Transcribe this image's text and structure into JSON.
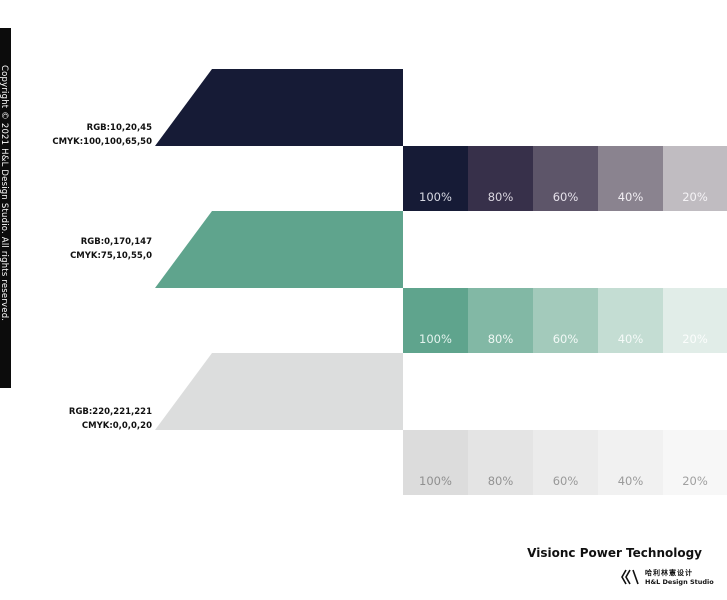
{
  "copyright": "Copyright © 2021 H&L Design Studio. All rights reserved.",
  "colors": [
    {
      "hex": "#161b36",
      "rgb_label": "RGB:10,20,45",
      "cmyk_label": "CMYK:100,100,65,50",
      "tints": [
        {
          "label": "100%",
          "color": "#161b36",
          "text": "#d7d9e3"
        },
        {
          "label": "80%",
          "color": "#37304a",
          "text": "#d9d5df"
        },
        {
          "label": "60%",
          "color": "#5d5569",
          "text": "#e5e1ea"
        },
        {
          "label": "40%",
          "color": "#8a838f",
          "text": "#f1eef3"
        },
        {
          "label": "20%",
          "color": "#c0bcc1",
          "text": "#f5f3f6"
        }
      ]
    },
    {
      "hex": "#5fa48d",
      "rgb_label": "RGB:0,170,147",
      "cmyk_label": "CMYK:75,10,55,0",
      "tints": [
        {
          "label": "100%",
          "color": "#5fa48d",
          "text": "#e4f3ee"
        },
        {
          "label": "80%",
          "color": "#82b8a5",
          "text": "#eef7f3"
        },
        {
          "label": "60%",
          "color": "#a3cabb",
          "text": "#f2f9f6"
        },
        {
          "label": "40%",
          "color": "#c4ddd3",
          "text": "#f5faf8"
        },
        {
          "label": "20%",
          "color": "#e1ede8",
          "text": "#fbfdfc"
        }
      ]
    },
    {
      "hex": "#dcdddd",
      "rgb_label": "RGB:220,221,221",
      "cmyk_label": "CMYK:0,0,0,20",
      "tints": [
        {
          "label": "100%",
          "color": "#dcdcdc",
          "text": "#8f8f8f"
        },
        {
          "label": "80%",
          "color": "#e4e4e4",
          "text": "#939393"
        },
        {
          "label": "60%",
          "color": "#ebebeb",
          "text": "#999999"
        },
        {
          "label": "40%",
          "color": "#f1f1f1",
          "text": "#9b9b9b"
        },
        {
          "label": "20%",
          "color": "#f7f7f7",
          "text": "#a0a0a0"
        }
      ]
    }
  ],
  "brand": {
    "title": "Visionc Power Technology",
    "cn": "哈利林憲设计",
    "en": "H&L Design Studio",
    "logo_icon": "hl-logo-icon"
  }
}
